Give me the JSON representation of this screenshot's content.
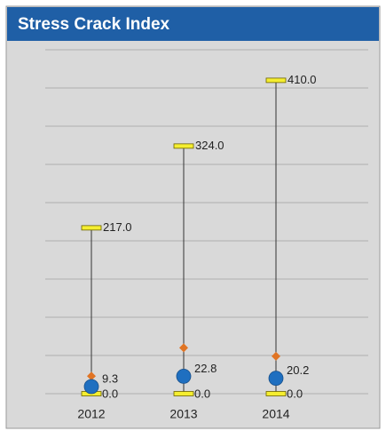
{
  "chart_data": {
    "type": "hilo",
    "title": "Stress Crack Index",
    "categories": [
      "2012",
      "2013",
      "2014"
    ],
    "ylim": [
      0,
      450
    ],
    "yticks": [
      0,
      50,
      100,
      150,
      200,
      250,
      300,
      350,
      400,
      450
    ],
    "grid": true,
    "series": [
      {
        "color": "#f5ee30",
        "marker": "bar",
        "values": [
          217,
          324,
          410
        ],
        "value_labels": [
          "217.0",
          "324.0",
          "410.0"
        ]
      },
      {
        "color": "#f5ee30",
        "marker": "bar",
        "values": [
          0,
          0,
          0
        ],
        "value_labels": [
          "0.0",
          "0.0",
          "0.0"
        ]
      },
      {
        "color": "#e07424",
        "marker": "diamond",
        "values": [
          23,
          60,
          49
        ]
      },
      {
        "color": "#1f6fc0",
        "marker": "circle",
        "values": [
          9.3,
          22.8,
          20.2
        ]
      }
    ]
  }
}
